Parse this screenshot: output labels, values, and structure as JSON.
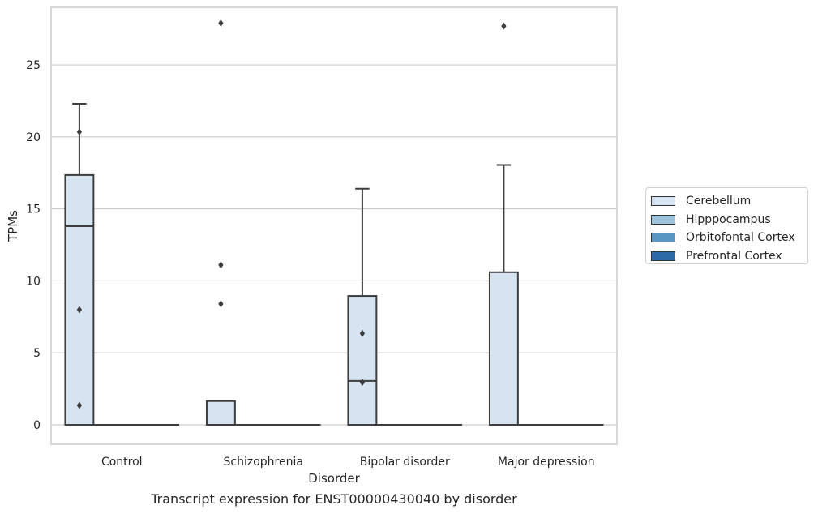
{
  "chart_data": {
    "type": "boxplot",
    "title": "",
    "xlabel": "Disorder",
    "ylabel": "TPMs",
    "caption": "Transcript expression for ENST00000430040 by disorder",
    "ylim": [
      -1.35,
      29.0
    ],
    "yticks": [
      0,
      5,
      10,
      15,
      20,
      25
    ],
    "grid": "horizontal",
    "legend_position": "right",
    "categories": [
      "Control",
      "Schizophrenia",
      "Bipolar disorder",
      "Major depression"
    ],
    "series": [
      {
        "name": "Cerebellum",
        "color": "#d6e3f0",
        "boxes": [
          {
            "whislo": 0,
            "q1": 0,
            "med": 13.8,
            "q3": 17.35,
            "whishi": 22.3,
            "fliers": [
              20.35,
              8.0,
              1.35
            ]
          },
          {
            "whislo": 0,
            "q1": 0,
            "med": 0,
            "q3": 1.65,
            "whishi": 1.65,
            "fliers": [
              27.9,
              11.1,
              8.4
            ]
          },
          {
            "whislo": 0,
            "q1": 0,
            "med": 3.05,
            "q3": 8.95,
            "whishi": 16.4,
            "fliers": [
              6.35,
              2.95
            ]
          },
          {
            "whislo": 0,
            "q1": 0,
            "med": 0,
            "q3": 10.6,
            "whishi": 18.05,
            "fliers": [
              27.7
            ]
          }
        ]
      },
      {
        "name": "Hipppocampus",
        "color": "#9dc2dc",
        "boxes": [
          {
            "whislo": 0,
            "q1": 0,
            "med": 0,
            "q3": 0,
            "whishi": 0,
            "fliers": []
          },
          {
            "whislo": 0,
            "q1": 0,
            "med": 0,
            "q3": 0,
            "whishi": 0,
            "fliers": []
          },
          {
            "whislo": 0,
            "q1": 0,
            "med": 0,
            "q3": 0,
            "whishi": 0,
            "fliers": []
          },
          {
            "whislo": 0,
            "q1": 0,
            "med": 0,
            "q3": 0,
            "whishi": 0,
            "fliers": []
          }
        ]
      },
      {
        "name": "Orbitofontal Cortex",
        "color": "#5a96c4",
        "boxes": [
          {
            "whislo": 0,
            "q1": 0,
            "med": 0,
            "q3": 0,
            "whishi": 0,
            "fliers": []
          },
          {
            "whislo": 0,
            "q1": 0,
            "med": 0,
            "q3": 0,
            "whishi": 0,
            "fliers": []
          },
          {
            "whislo": 0,
            "q1": 0,
            "med": 0,
            "q3": 0,
            "whishi": 0,
            "fliers": []
          },
          {
            "whislo": 0,
            "q1": 0,
            "med": 0,
            "q3": 0,
            "whishi": 0,
            "fliers": []
          }
        ]
      },
      {
        "name": "Prefrontal Cortex",
        "color": "#2b6aa6",
        "boxes": [
          {
            "whislo": 0,
            "q1": 0,
            "med": 0,
            "q3": 0,
            "whishi": 0,
            "fliers": []
          },
          {
            "whislo": 0,
            "q1": 0,
            "med": 0,
            "q3": 0,
            "whishi": 0,
            "fliers": []
          },
          {
            "whislo": 0,
            "q1": 0,
            "med": 0,
            "q3": 0,
            "whishi": 0,
            "fliers": []
          },
          {
            "whislo": 0,
            "q1": 0,
            "med": 0,
            "q3": 0,
            "whishi": 0,
            "fliers": []
          }
        ]
      }
    ]
  }
}
